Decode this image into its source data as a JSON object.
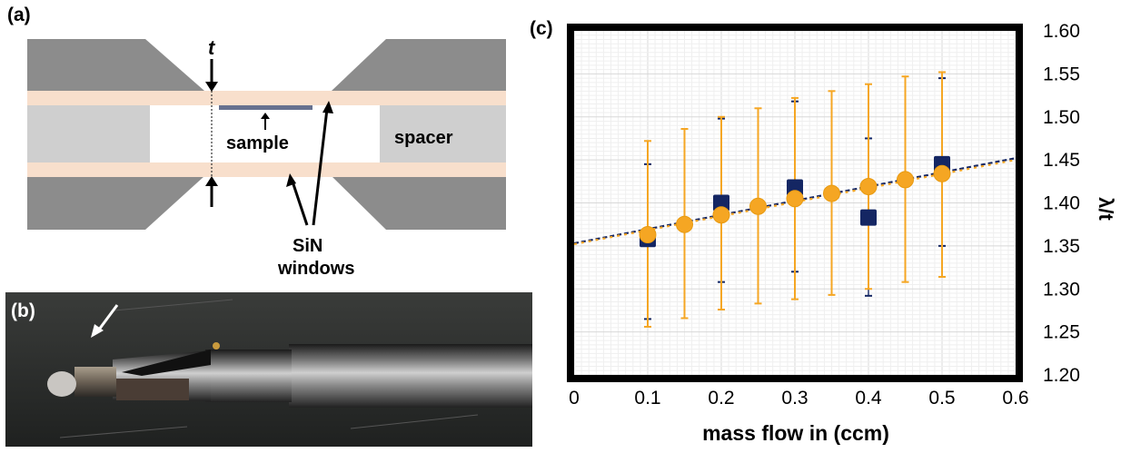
{
  "panel_a": {
    "label": "(a)",
    "thickness_label": "t",
    "sample_label": "sample",
    "spacer_label": "spacer",
    "windows_label_line1": "SiN",
    "windows_label_line2": "windows",
    "colors": {
      "body": "#8c8c8c",
      "window": "#f8dfcc",
      "spacer": "#cfcfcf",
      "sample": "#66718f"
    }
  },
  "panel_b": {
    "label": "(b)",
    "description_icon": "arrow-pointer-icon"
  },
  "panel_c": {
    "label": "(c)"
  },
  "chart_data": {
    "type": "scatter",
    "title": "",
    "xlabel": "mass flow in (ccm)",
    "ylabel": "λ/t",
    "xlim": [
      0,
      0.6
    ],
    "ylim": [
      1.2,
      1.6
    ],
    "xticks": [
      "0",
      "0.1",
      "0.2",
      "0.3",
      "0.4",
      "0.5",
      "0.6"
    ],
    "yticks": [
      "1.20",
      "1.25",
      "1.30",
      "1.35",
      "1.40",
      "1.45",
      "1.50",
      "1.55",
      "1.60"
    ],
    "grid": true,
    "series": [
      {
        "marker": "square",
        "color": "#142663",
        "points": [
          {
            "x": 0.1,
            "y": 1.358,
            "ylow": 1.265,
            "yhigh": 1.445
          },
          {
            "x": 0.2,
            "y": 1.4,
            "ylow": 1.308,
            "yhigh": 1.498
          },
          {
            "x": 0.3,
            "y": 1.418,
            "ylow": 1.32,
            "yhigh": 1.518
          },
          {
            "x": 0.4,
            "y": 1.383,
            "ylow": 1.292,
            "yhigh": 1.475
          },
          {
            "x": 0.5,
            "y": 1.445,
            "ylow": 1.35,
            "yhigh": 1.545
          }
        ]
      },
      {
        "marker": "circle",
        "color": "#f5a623",
        "points": [
          {
            "x": 0.1,
            "y": 1.363,
            "ylow": 1.256,
            "yhigh": 1.472
          },
          {
            "x": 0.15,
            "y": 1.375,
            "ylow": 1.266,
            "yhigh": 1.486
          },
          {
            "x": 0.2,
            "y": 1.386,
            "ylow": 1.276,
            "yhigh": 1.5
          },
          {
            "x": 0.25,
            "y": 1.396,
            "ylow": 1.283,
            "yhigh": 1.51
          },
          {
            "x": 0.3,
            "y": 1.405,
            "ylow": 1.288,
            "yhigh": 1.522
          },
          {
            "x": 0.35,
            "y": 1.411,
            "ylow": 1.293,
            "yhigh": 1.53
          },
          {
            "x": 0.4,
            "y": 1.419,
            "ylow": 1.3,
            "yhigh": 1.538
          },
          {
            "x": 0.45,
            "y": 1.427,
            "ylow": 1.308,
            "yhigh": 1.547
          },
          {
            "x": 0.5,
            "y": 1.434,
            "ylow": 1.314,
            "yhigh": 1.552
          }
        ]
      }
    ],
    "fit_lines": [
      {
        "color": "#142663",
        "style": "dashed",
        "y_at_xmin": 1.353,
        "y_at_xmax": 1.452
      },
      {
        "color": "#f5a623",
        "style": "dashed",
        "y_at_xmin": 1.352,
        "y_at_xmax": 1.45
      }
    ]
  }
}
